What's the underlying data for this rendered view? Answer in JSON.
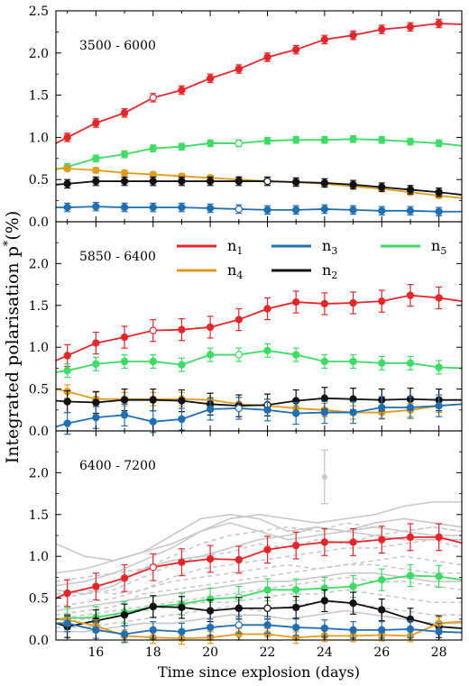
{
  "figure": {
    "ylabel_main": "Integrated polarisation p",
    "ylabel_sup": "*",
    "ylabel_unit": "(%)",
    "xlabel": "Time since explosion (days)",
    "xticks": [
      16,
      18,
      20,
      22,
      24,
      26,
      28
    ]
  },
  "legend": [
    {
      "label": "n",
      "sub": "1",
      "color": "#e8262a"
    },
    {
      "label": "n",
      "sub": "3",
      "color": "#1f6fb2"
    },
    {
      "label": "n",
      "sub": "5",
      "color": "#3ddc64"
    },
    {
      "label": "n",
      "sub": "4",
      "color": "#e09c1c"
    },
    {
      "label": "n",
      "sub": "2",
      "color": "#111111"
    }
  ],
  "colors": {
    "n1": "#e8262a",
    "n2": "#111111",
    "n3": "#1f6fb2",
    "n4": "#e09c1c",
    "n5": "#3ddc64",
    "grey": "#c8c8c8"
  },
  "chart_data": [
    {
      "type": "line",
      "title": "3500 - 6000",
      "xlim": [
        14.6,
        28.8
      ],
      "ylim": [
        0,
        2.5
      ],
      "yticks": [
        "0.0",
        "0.5",
        "1.0",
        "1.5",
        "2.0",
        "2.5"
      ],
      "x": [
        15,
        16,
        17,
        18,
        19,
        20,
        21,
        22,
        23,
        24,
        25,
        26,
        27,
        28
      ],
      "series": [
        {
          "key": "n1",
          "values": [
            1.0,
            1.17,
            1.29,
            1.47,
            1.56,
            1.7,
            1.81,
            1.95,
            2.04,
            2.16,
            2.21,
            2.28,
            2.31,
            2.35
          ],
          "err": 0.05,
          "open": [
            18
          ],
          "ends": [
            0.93,
            2.34
          ]
        },
        {
          "key": "n5",
          "values": [
            0.65,
            0.75,
            0.8,
            0.87,
            0.89,
            0.93,
            0.93,
            0.96,
            0.97,
            0.97,
            0.98,
            0.97,
            0.95,
            0.93
          ],
          "err": 0.04,
          "open": [
            21
          ],
          "ends": [
            0.62,
            0.9
          ]
        },
        {
          "key": "n4",
          "values": [
            0.63,
            0.61,
            0.58,
            0.56,
            0.54,
            0.52,
            0.5,
            0.48,
            0.47,
            0.45,
            0.42,
            0.39,
            0.35,
            0.31
          ],
          "err": 0.03,
          "open": [],
          "ends": [
            0.63,
            0.28
          ]
        },
        {
          "key": "n2",
          "values": [
            0.45,
            0.48,
            0.48,
            0.48,
            0.48,
            0.48,
            0.48,
            0.48,
            0.47,
            0.46,
            0.44,
            0.41,
            0.38,
            0.35
          ],
          "err": 0.05,
          "open": [
            22
          ],
          "ends": [
            0.44,
            0.32
          ]
        },
        {
          "key": "n3",
          "values": [
            0.17,
            0.18,
            0.17,
            0.17,
            0.17,
            0.16,
            0.15,
            0.14,
            0.14,
            0.15,
            0.14,
            0.13,
            0.13,
            0.12
          ],
          "err": 0.05,
          "open": [
            21
          ],
          "ends": [
            0.17,
            0.12
          ]
        }
      ]
    },
    {
      "type": "line",
      "title": "5850 - 6400",
      "xlim": [
        14.6,
        28.8
      ],
      "ylim": [
        0,
        2.5
      ],
      "yticks": [
        "0.0",
        "0.5",
        "1.0",
        "1.5",
        "2.0"
      ],
      "x": [
        15,
        16,
        17,
        18,
        19,
        20,
        21,
        22,
        23,
        24,
        25,
        26,
        27,
        28
      ],
      "series": [
        {
          "key": "n1",
          "values": [
            0.9,
            1.05,
            1.12,
            1.2,
            1.21,
            1.24,
            1.33,
            1.46,
            1.54,
            1.52,
            1.53,
            1.55,
            1.62,
            1.59
          ],
          "err": 0.13,
          "open": [
            18
          ],
          "ends": [
            0.84,
            1.55
          ]
        },
        {
          "key": "n5",
          "values": [
            0.72,
            0.8,
            0.83,
            0.83,
            0.79,
            0.91,
            0.91,
            0.96,
            0.91,
            0.83,
            0.83,
            0.81,
            0.81,
            0.76
          ],
          "err": 0.08,
          "open": [
            21
          ],
          "ends": [
            0.7,
            0.75
          ]
        },
        {
          "key": "n4",
          "values": [
            0.47,
            0.38,
            0.38,
            0.38,
            0.38,
            0.37,
            0.32,
            0.3,
            0.27,
            0.25,
            0.22,
            0.22,
            0.25,
            0.3
          ],
          "err": 0.08,
          "open": [],
          "ends": [
            0.5,
            0.32
          ]
        },
        {
          "key": "n2",
          "values": [
            0.35,
            0.34,
            0.37,
            0.37,
            0.36,
            0.32,
            0.3,
            0.31,
            0.36,
            0.39,
            0.38,
            0.37,
            0.38,
            0.37
          ],
          "err": 0.13,
          "open": [
            22
          ],
          "ends": [
            0.36,
            0.37
          ]
        },
        {
          "key": "n3",
          "values": [
            0.09,
            0.16,
            0.19,
            0.11,
            0.14,
            0.26,
            0.27,
            0.25,
            0.21,
            0.22,
            0.22,
            0.28,
            0.28,
            0.3
          ],
          "err": 0.13,
          "open": [
            21
          ],
          "ends": [
            0.05,
            0.32
          ]
        }
      ]
    },
    {
      "type": "line",
      "title": "6400 - 7200",
      "xlim": [
        14.6,
        28.8
      ],
      "ylim": [
        0,
        2.5
      ],
      "yticks": [
        "0.0",
        "0.5",
        "1.0",
        "1.5",
        "2.0"
      ],
      "x": [
        15,
        16,
        17,
        18,
        19,
        20,
        21,
        22,
        23,
        24,
        25,
        26,
        27,
        28
      ],
      "outlier": {
        "x": 24,
        "y": 1.95,
        "err": 0.32
      },
      "background": [
        {
          "dashed": false,
          "values": [
            1.15,
            1.0,
            0.95,
            1.05,
            1.15,
            1.3,
            1.45,
            1.5,
            1.45,
            1.4,
            1.45,
            1.5,
            1.6,
            1.65,
            1.65
          ]
        },
        {
          "dashed": false,
          "values": [
            0.8,
            0.85,
            0.95,
            1.05,
            1.25,
            1.45,
            1.5,
            1.45,
            1.3,
            1.35,
            1.3,
            1.4,
            1.45,
            1.4,
            1.35
          ]
        },
        {
          "dashed": false,
          "values": [
            0.65,
            0.7,
            0.8,
            0.95,
            1.1,
            1.3,
            1.4,
            1.3,
            1.2,
            1.25,
            1.3,
            1.35,
            1.3,
            1.25,
            1.25
          ]
        },
        {
          "dashed": false,
          "values": [
            0.6,
            0.55,
            0.65,
            0.85,
            0.95,
            1.0,
            1.1,
            1.2,
            1.25,
            1.35,
            1.3,
            1.25,
            1.2,
            1.2,
            1.2
          ]
        },
        {
          "dashed": true,
          "values": [
            0.7,
            0.75,
            0.8,
            0.85,
            1.0,
            1.15,
            1.25,
            1.3,
            1.35,
            1.3,
            1.4,
            1.35,
            1.3,
            1.35,
            1.3
          ]
        },
        {
          "dashed": true,
          "values": [
            0.5,
            0.55,
            0.6,
            0.75,
            0.9,
            1.0,
            1.05,
            1.15,
            1.1,
            1.2,
            1.15,
            1.25,
            1.3,
            1.35,
            1.3
          ]
        },
        {
          "dashed": true,
          "values": [
            0.4,
            0.45,
            0.5,
            0.6,
            0.75,
            0.85,
            0.9,
            0.95,
            1.0,
            1.05,
            1.1,
            1.1,
            1.15,
            1.2,
            1.1
          ]
        },
        {
          "dashed": true,
          "values": [
            0.55,
            0.6,
            0.55,
            0.6,
            0.7,
            0.75,
            0.8,
            0.85,
            0.9,
            0.85,
            0.9,
            0.95,
            1.0,
            0.95,
            0.9
          ]
        },
        {
          "dashed": true,
          "values": [
            0.3,
            0.35,
            0.4,
            0.55,
            0.6,
            0.65,
            0.7,
            0.75,
            0.8,
            0.85,
            0.9,
            0.9,
            0.85,
            0.8,
            0.8
          ]
        },
        {
          "dashed": true,
          "values": [
            0.25,
            0.3,
            0.35,
            0.4,
            0.45,
            0.5,
            0.55,
            0.6,
            0.65,
            0.7,
            0.75,
            0.7,
            0.7,
            0.65,
            0.6
          ]
        },
        {
          "dashed": true,
          "values": [
            0.2,
            0.25,
            0.3,
            0.35,
            0.4,
            0.45,
            0.45,
            0.5,
            0.55,
            0.55,
            0.6,
            0.55,
            0.5,
            0.45,
            0.45
          ]
        },
        {
          "dashed": true,
          "values": [
            0.15,
            0.15,
            0.2,
            0.25,
            0.3,
            0.35,
            0.4,
            0.35,
            0.4,
            0.45,
            0.45,
            0.4,
            0.35,
            0.3,
            0.3
          ]
        },
        {
          "dashed": false,
          "values": [
            0.35,
            0.4,
            0.45,
            0.5,
            0.55,
            0.6,
            0.65,
            0.7,
            0.7,
            0.75,
            0.8,
            0.8,
            0.75,
            0.7,
            0.7
          ]
        },
        {
          "dashed": false,
          "values": [
            0.1,
            0.1,
            0.15,
            0.2,
            0.2,
            0.25,
            0.3,
            0.3,
            0.25,
            0.3,
            0.35,
            0.3,
            0.25,
            0.2,
            0.2
          ]
        }
      ],
      "series": [
        {
          "key": "n1",
          "values": [
            0.56,
            0.64,
            0.74,
            0.87,
            0.93,
            0.97,
            0.96,
            1.08,
            1.13,
            1.17,
            1.17,
            1.2,
            1.23,
            1.23
          ],
          "err": 0.16,
          "open": [
            18
          ],
          "ends": [
            0.5,
            1.16
          ]
        },
        {
          "key": "n5",
          "values": [
            0.26,
            0.27,
            0.33,
            0.4,
            0.43,
            0.49,
            0.51,
            0.6,
            0.6,
            0.62,
            0.64,
            0.72,
            0.77,
            0.76
          ],
          "err": 0.13,
          "open": [
            21
          ],
          "ends": [
            0.25,
            0.72
          ]
        },
        {
          "key": "n2",
          "values": [
            0.16,
            0.23,
            0.3,
            0.4,
            0.39,
            0.35,
            0.38,
            0.38,
            0.39,
            0.47,
            0.44,
            0.36,
            0.25,
            0.16
          ],
          "err": 0.13,
          "open": [
            22
          ],
          "ends": [
            0.2,
            0.14
          ]
        },
        {
          "key": "n4",
          "values": [
            0.24,
            0.17,
            0.05,
            0.03,
            0.02,
            0.03,
            0.07,
            0.07,
            0.03,
            0.05,
            0.05,
            0.06,
            0.05,
            0.2
          ],
          "err": 0.07,
          "open": [],
          "ends": [
            0.25,
            0.22
          ]
        },
        {
          "key": "n3",
          "values": [
            0.2,
            0.12,
            0.07,
            0.12,
            0.1,
            0.15,
            0.18,
            0.18,
            0.15,
            0.14,
            0.12,
            0.12,
            0.13,
            0.1
          ],
          "err": 0.1,
          "open": [
            21
          ],
          "ends": [
            0.2,
            0.09
          ]
        }
      ]
    }
  ]
}
